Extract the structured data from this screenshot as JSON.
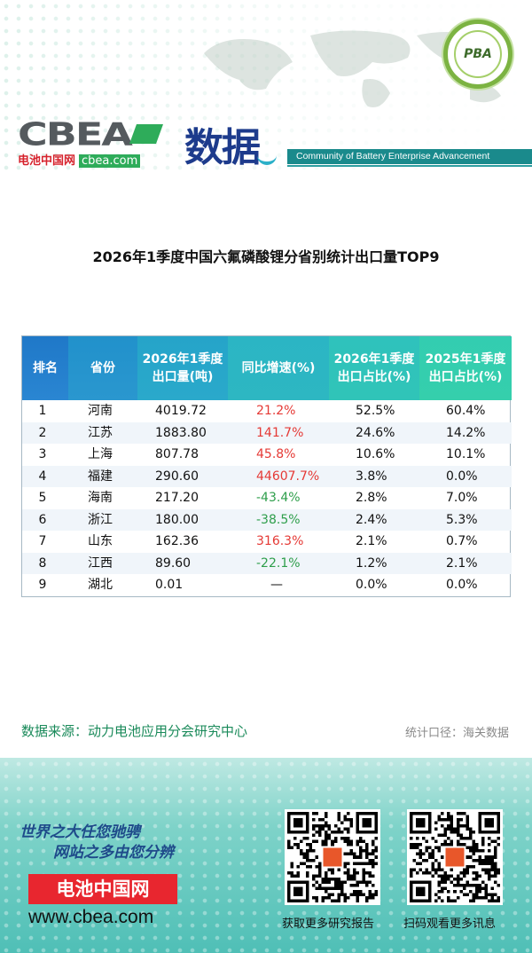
{
  "header": {
    "logo_text": "CBEA",
    "logo_sub_cn": "电池中国网",
    "logo_sub_site": "cbea.com",
    "section_title": "数据",
    "community": "Community of Battery Enterprise Advancement",
    "badge_text": "PBA"
  },
  "title": "2026年1季度中国六氟磷酸锂分省别统计出口量TOP9",
  "table": {
    "headers": {
      "rank": "排名",
      "province": "省份",
      "volume": "2026年1季度出口量(吨)",
      "yoy": "同比增速(%)",
      "share_2026": "2026年1季度出口占比(%)",
      "share_2025": "2025年1季度出口占比(%)"
    },
    "rows": [
      {
        "rank": "1",
        "province": "河南",
        "volume": "4019.72",
        "yoy": "21.2%",
        "share_2026": "52.5%",
        "share_2025": "60.4%"
      },
      {
        "rank": "2",
        "province": "江苏",
        "volume": "1883.80",
        "yoy": "141.7%",
        "share_2026": "24.6%",
        "share_2025": "14.2%"
      },
      {
        "rank": "3",
        "province": "上海",
        "volume": "807.78",
        "yoy": "45.8%",
        "share_2026": "10.6%",
        "share_2025": "10.1%"
      },
      {
        "rank": "4",
        "province": "福建",
        "volume": "290.60",
        "yoy": "44607.7%",
        "share_2026": "3.8%",
        "share_2025": "0.0%"
      },
      {
        "rank": "5",
        "province": "海南",
        "volume": "217.20",
        "yoy": "-43.4%",
        "share_2026": "2.8%",
        "share_2025": "7.0%"
      },
      {
        "rank": "6",
        "province": "浙江",
        "volume": "180.00",
        "yoy": "-38.5%",
        "share_2026": "2.4%",
        "share_2025": "5.3%"
      },
      {
        "rank": "7",
        "province": "山东",
        "volume": "162.36",
        "yoy": "316.3%",
        "share_2026": "2.1%",
        "share_2025": "0.7%"
      },
      {
        "rank": "8",
        "province": "江西",
        "volume": "89.60",
        "yoy": "-22.1%",
        "share_2026": "1.2%",
        "share_2025": "2.1%"
      },
      {
        "rank": "9",
        "province": "湖北",
        "volume": "0.01",
        "yoy": "—",
        "share_2026": "0.0%",
        "share_2025": "0.0%"
      }
    ]
  },
  "source": "数据来源：动力电池应用分会研究中心",
  "caliber": "统计口径：海关数据",
  "footer": {
    "slogan_1": "世界之大任您驰骋",
    "slogan_2": "网站之多由您分辨",
    "brand": "电池中国网",
    "url": "www.cbea.com",
    "qr1_caption": "获取更多研究报告",
    "qr2_caption": "扫码观看更多讯息"
  },
  "colors": {
    "positive": "#e53935",
    "negative": "#2e9e4b",
    "accent_teal": "#1a8a8c",
    "brand_red": "#e8262f"
  }
}
